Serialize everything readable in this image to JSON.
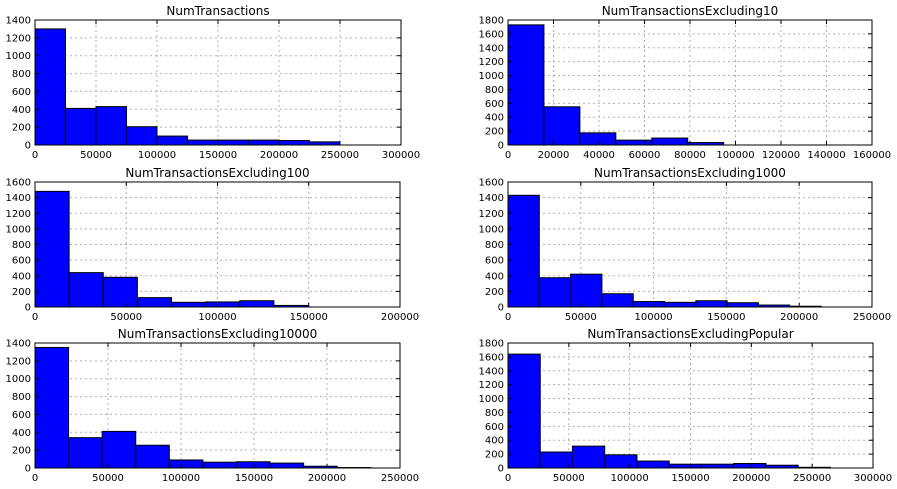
{
  "figure": {
    "background": "#ffffff",
    "bar_color": "#0000ff",
    "edge_color": "#000000",
    "grid": true
  },
  "chart_data": [
    {
      "type": "bar",
      "title": "NumTransactions",
      "bin_edges": [
        0,
        25000,
        50000,
        75000,
        100000,
        125000,
        150000,
        175000,
        200000,
        225000,
        250000
      ],
      "values": [
        1300,
        410,
        430,
        205,
        100,
        55,
        55,
        55,
        50,
        35
      ],
      "xlim": [
        0,
        300000
      ],
      "ylim": [
        0,
        1400
      ],
      "xticks": [
        0,
        50000,
        100000,
        150000,
        200000,
        250000,
        300000
      ],
      "xtick_labels": [
        "0",
        "50000",
        "100000",
        "150000",
        "200000",
        "250000",
        "300000"
      ],
      "yticks": [
        0,
        200,
        400,
        600,
        800,
        1000,
        1200,
        1400
      ],
      "ytick_labels": [
        "0",
        "200",
        "400",
        "600",
        "800",
        "1000",
        "1200",
        "1400"
      ]
    },
    {
      "type": "bar",
      "title": "NumTransactionsExcluding10",
      "bin_edges": [
        0,
        15800,
        31600,
        47400,
        63200,
        79000,
        94800,
        110600,
        126400,
        142200,
        158000
      ],
      "values": [
        1730,
        550,
        175,
        70,
        100,
        35,
        0,
        0,
        0,
        0
      ],
      "xlim": [
        0,
        160000
      ],
      "ylim": [
        0,
        1800
      ],
      "xticks": [
        0,
        20000,
        40000,
        60000,
        80000,
        100000,
        120000,
        140000,
        160000
      ],
      "xtick_labels": [
        "0",
        "20000",
        "40000",
        "60000",
        "80000",
        "100000",
        "120000",
        "140000",
        "160000"
      ],
      "yticks": [
        0,
        200,
        400,
        600,
        800,
        1000,
        1200,
        1400,
        1600,
        1800
      ],
      "ytick_labels": [
        "0",
        "200",
        "400",
        "600",
        "800",
        "1000",
        "1200",
        "1400",
        "1600",
        "1800"
      ]
    },
    {
      "type": "bar",
      "title": "NumTransactionsExcluding100",
      "bin_edges": [
        0,
        18700,
        37400,
        56100,
        74800,
        93500,
        112200,
        130900,
        149600,
        168300,
        187000
      ],
      "values": [
        1480,
        440,
        380,
        120,
        60,
        65,
        80,
        20,
        0,
        0
      ],
      "xlim": [
        0,
        200000
      ],
      "ylim": [
        0,
        1600
      ],
      "xticks": [
        0,
        50000,
        100000,
        150000,
        200000
      ],
      "xtick_labels": [
        "0",
        "50000",
        "100000",
        "150000",
        "200000"
      ],
      "yticks": [
        0,
        200,
        400,
        600,
        800,
        1000,
        1200,
        1400,
        1600
      ],
      "ytick_labels": [
        "0",
        "200",
        "400",
        "600",
        "800",
        "1000",
        "1200",
        "1400",
        "1600"
      ]
    },
    {
      "type": "bar",
      "title": "NumTransactionsExcluding1000",
      "bin_edges": [
        0,
        21500,
        43000,
        64500,
        86000,
        107500,
        129000,
        150500,
        172000,
        193500,
        215000
      ],
      "values": [
        1430,
        375,
        420,
        170,
        70,
        60,
        80,
        55,
        25,
        10
      ],
      "xlim": [
        0,
        250000
      ],
      "ylim": [
        0,
        1600
      ],
      "xticks": [
        0,
        50000,
        100000,
        150000,
        200000,
        250000
      ],
      "xtick_labels": [
        "0",
        "50000",
        "100000",
        "150000",
        "200000",
        "250000"
      ],
      "yticks": [
        0,
        200,
        400,
        600,
        800,
        1000,
        1200,
        1400,
        1600
      ],
      "ytick_labels": [
        "0",
        "200",
        "400",
        "600",
        "800",
        "1000",
        "1200",
        "1400",
        "1600"
      ]
    },
    {
      "type": "bar",
      "title": "NumTransactionsExcluding10000",
      "bin_edges": [
        0,
        23000,
        46000,
        69000,
        92000,
        115000,
        138000,
        161000,
        184000,
        207000,
        230000
      ],
      "values": [
        1350,
        340,
        410,
        255,
        90,
        65,
        70,
        55,
        20,
        5
      ],
      "xlim": [
        0,
        250000
      ],
      "ylim": [
        0,
        1400
      ],
      "xticks": [
        0,
        50000,
        100000,
        150000,
        200000,
        250000
      ],
      "xtick_labels": [
        "0",
        "50000",
        "100000",
        "150000",
        "200000",
        "250000"
      ],
      "yticks": [
        0,
        200,
        400,
        600,
        800,
        1000,
        1200,
        1400
      ],
      "ytick_labels": [
        "0",
        "200",
        "400",
        "600",
        "800",
        "1000",
        "1200",
        "1400"
      ]
    },
    {
      "type": "bar",
      "title": "NumTransactionsExcludingPopular",
      "bin_edges": [
        0,
        26500,
        53000,
        79500,
        106000,
        132500,
        159000,
        185500,
        212000,
        238500,
        265000
      ],
      "values": [
        1640,
        230,
        315,
        190,
        100,
        55,
        55,
        65,
        40,
        10
      ],
      "xlim": [
        0,
        300000
      ],
      "ylim": [
        0,
        1800
      ],
      "xticks": [
        0,
        50000,
        100000,
        150000,
        200000,
        250000,
        300000
      ],
      "xtick_labels": [
        "0",
        "50000",
        "100000",
        "150000",
        "200000",
        "250000",
        "300000"
      ],
      "yticks": [
        0,
        200,
        400,
        600,
        800,
        1000,
        1200,
        1400,
        1600,
        1800
      ],
      "ytick_labels": [
        "0",
        "200",
        "400",
        "600",
        "800",
        "1000",
        "1200",
        "1400",
        "1600",
        "1800"
      ]
    }
  ]
}
